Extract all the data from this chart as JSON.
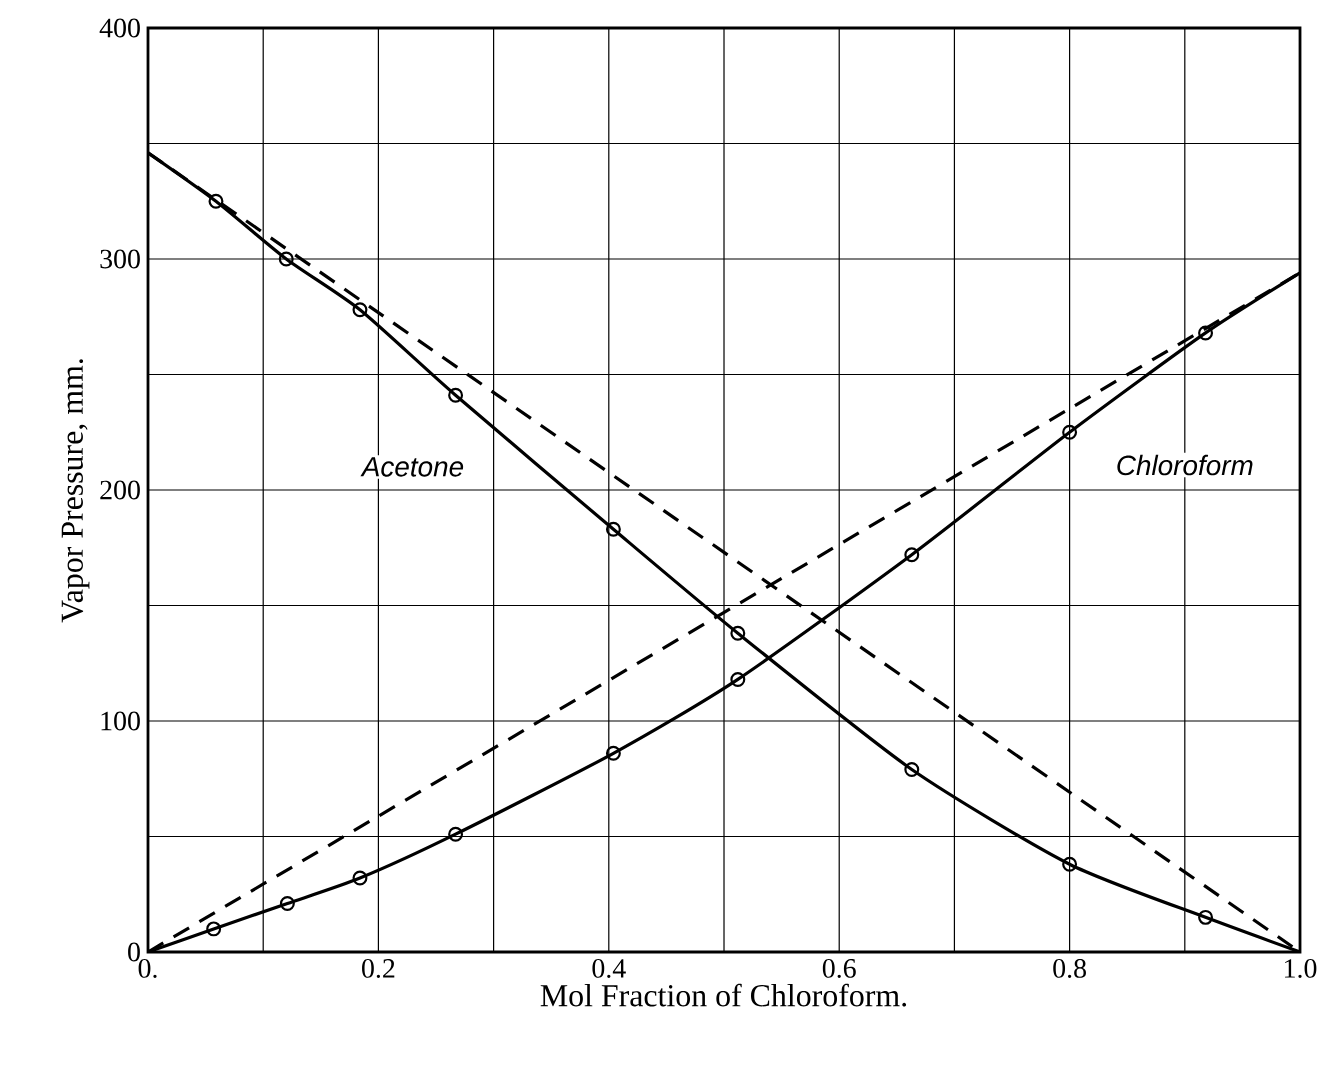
{
  "chart_data": {
    "type": "line",
    "xlabel": "Mol Fraction of Chloroform.",
    "ylabel": "Vapor Pressure, mm.",
    "xlim": [
      0,
      1.0
    ],
    "ylim": [
      0,
      400
    ],
    "xticks": [
      {
        "value": 0,
        "label": "0."
      },
      {
        "value": 0.1,
        "label": null
      },
      {
        "value": 0.2,
        "label": "0.2"
      },
      {
        "value": 0.3,
        "label": null
      },
      {
        "value": 0.4,
        "label": "0.4"
      },
      {
        "value": 0.5,
        "label": null
      },
      {
        "value": 0.6,
        "label": "0.6"
      },
      {
        "value": 0.7,
        "label": null
      },
      {
        "value": 0.8,
        "label": "0.8"
      },
      {
        "value": 0.9,
        "label": null
      },
      {
        "value": 1.0,
        "label": "1.0"
      }
    ],
    "yticks": [
      0,
      {
        "value": 50,
        "label": null
      },
      100,
      {
        "value": 150,
        "label": null
      },
      200,
      {
        "value": 250,
        "label": null
      },
      300,
      {
        "value": 350,
        "label": null
      },
      400
    ],
    "grid": true,
    "series": [
      {
        "line_style": "dashed",
        "marker": "none",
        "color": "#000000",
        "x": [
          0,
          1.0
        ],
        "values": [
          346,
          0
        ]
      },
      {
        "line_style": "dashed",
        "marker": "none",
        "color": "#000000",
        "x": [
          0,
          1.0
        ],
        "values": [
          0,
          294
        ]
      },
      {
        "name": "Acetone",
        "line_style": "solid",
        "marker": "none",
        "color": "#000000",
        "x": [
          0,
          0.059,
          0.12,
          0.184,
          0.267,
          0.404,
          0.512,
          0.663,
          0.8,
          0.918,
          1.0
        ],
        "values": [
          346,
          325,
          300,
          278,
          241,
          183,
          138,
          79,
          38,
          15,
          0
        ]
      },
      {
        "name": "Chloroform",
        "line_style": "solid",
        "marker": "none",
        "color": "#000000",
        "x": [
          0,
          0.057,
          0.121,
          0.184,
          0.267,
          0.404,
          0.512,
          0.663,
          0.8,
          0.918,
          1.0
        ],
        "values": [
          0,
          10,
          21,
          32,
          51,
          86,
          118,
          172,
          225,
          268,
          294
        ]
      },
      {
        "type": "scatter",
        "marker": "circle",
        "color": "#000000",
        "x": [
          0.059,
          0.12,
          0.184,
          0.267,
          0.404,
          0.512,
          0.663,
          0.8,
          0.918
        ],
        "values": [
          325,
          300,
          278,
          241,
          183,
          138,
          79,
          38,
          15
        ]
      },
      {
        "type": "scatter",
        "marker": "circle",
        "color": "#000000",
        "x": [
          0.057,
          0.121,
          0.184,
          0.267,
          0.404,
          0.512,
          0.663,
          0.8,
          0.918
        ],
        "values": [
          10,
          21,
          32,
          51,
          86,
          118,
          172,
          225,
          268
        ]
      }
    ]
  }
}
